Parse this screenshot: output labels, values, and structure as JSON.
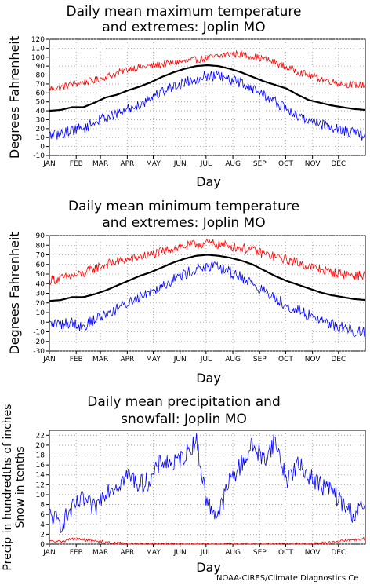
{
  "credit": "NOAA-CIRES/Climate Diagnostics Ce",
  "chart_data": [
    {
      "type": "line",
      "title_lines": [
        "Daily mean maximum temperature",
        "and extremes: Joplin MO"
      ],
      "xlabel": "Day",
      "ylabel": "Degrees Fahrenheit",
      "ylim": [
        -10,
        120
      ],
      "yticks": [
        -10,
        0,
        10,
        20,
        30,
        40,
        50,
        60,
        70,
        80,
        90,
        100,
        110,
        120
      ],
      "months": [
        "JAN",
        "FEB",
        "MAR",
        "APR",
        "MAY",
        "JUN",
        "JUL",
        "AUG",
        "SEP",
        "OCT",
        "NOV",
        "DEC"
      ],
      "grid": true,
      "series": [
        {
          "color": "#ff0000",
          "noise": 4,
          "values": [
            65,
            66,
            70,
            72,
            74,
            78,
            82,
            87,
            89,
            90,
            92,
            94,
            95,
            97,
            99,
            101,
            104,
            103,
            101,
            98,
            94,
            89,
            84,
            80,
            76,
            73,
            70,
            69,
            69
          ]
        },
        {
          "color": "#000000",
          "noise": 0,
          "values": [
            40,
            41,
            44,
            44,
            49,
            55,
            58,
            63,
            67,
            72,
            78,
            83,
            87,
            90,
            91,
            90,
            87,
            83,
            78,
            73,
            69,
            65,
            58,
            52,
            49,
            46,
            44,
            42,
            41
          ]
        },
        {
          "color": "#0000ff",
          "noise": 6,
          "values": [
            12,
            14,
            19,
            20,
            27,
            33,
            36,
            42,
            47,
            55,
            62,
            67,
            72,
            76,
            79,
            79,
            74,
            72,
            65,
            58,
            50,
            42,
            33,
            30,
            26,
            22,
            18,
            15,
            12
          ]
        }
      ]
    },
    {
      "type": "line",
      "title_lines": [
        "Daily mean minimum temperature",
        "and extremes: Joplin MO"
      ],
      "xlabel": "Day",
      "ylabel": "Degrees Fahrenheit",
      "ylim": [
        -30,
        90
      ],
      "yticks": [
        -30,
        -20,
        -10,
        0,
        10,
        20,
        30,
        40,
        50,
        60,
        70,
        80,
        90
      ],
      "months": [
        "JAN",
        "FEB",
        "MAR",
        "APR",
        "MAY",
        "JUN",
        "JUL",
        "AUG",
        "SEP",
        "OCT",
        "NOV",
        "DEC"
      ],
      "grid": true,
      "series": [
        {
          "color": "#ff0000",
          "noise": 5,
          "values": [
            44,
            45,
            48,
            50,
            56,
            60,
            63,
            65,
            68,
            70,
            73,
            77,
            79,
            81,
            82,
            81,
            79,
            77,
            75,
            71,
            68,
            65,
            62,
            58,
            55,
            52,
            50,
            49,
            48
          ]
        },
        {
          "color": "#000000",
          "noise": 0,
          "values": [
            22,
            23,
            26,
            26,
            29,
            33,
            38,
            43,
            48,
            52,
            57,
            62,
            66,
            69,
            70,
            69,
            67,
            64,
            60,
            54,
            48,
            43,
            39,
            35,
            31,
            28,
            26,
            24,
            23
          ]
        },
        {
          "color": "#0000ff",
          "noise": 6,
          "values": [
            -1,
            -2,
            0,
            -5,
            3,
            8,
            14,
            20,
            27,
            33,
            38,
            45,
            50,
            55,
            57,
            57,
            52,
            47,
            40,
            32,
            25,
            18,
            12,
            7,
            3,
            -2,
            -6,
            -9,
            -10
          ]
        }
      ]
    },
    {
      "type": "line",
      "title_lines": [
        "Daily mean precipitation and",
        "snowfall: Joplin MO"
      ],
      "xlabel": "Day",
      "ylabel_lines": [
        "Precip in hundredths of inches",
        "Snow in tenths"
      ],
      "ylim": [
        0,
        23
      ],
      "yticks": [
        0,
        2,
        4,
        6,
        8,
        10,
        12,
        14,
        16,
        18,
        20,
        22
      ],
      "months": [
        "JAN",
        "FEB",
        "MAR",
        "APR",
        "MAY",
        "JUN",
        "JUL",
        "AUG",
        "SEP",
        "OCT",
        "NOV",
        "DEC"
      ],
      "grid": true,
      "series": [
        {
          "color": "#0000ff",
          "noise": 2,
          "values": [
            6,
            4,
            7,
            9,
            7,
            11,
            12,
            14,
            12,
            13,
            17,
            16,
            18,
            21,
            8,
            6,
            13,
            16,
            20,
            17,
            21,
            13,
            16,
            14,
            12,
            11,
            8,
            6,
            8
          ]
        },
        {
          "color": "#ff0000",
          "noise": 0.3,
          "values": [
            0.6,
            0.5,
            1.1,
            0.9,
            0.6,
            0.4,
            0.2,
            0,
            0,
            0,
            0,
            0,
            0,
            0,
            0,
            0,
            0,
            0,
            0,
            0,
            0,
            0,
            0,
            0,
            0.2,
            0.3,
            0.6,
            0.9,
            1.1
          ]
        }
      ]
    }
  ]
}
